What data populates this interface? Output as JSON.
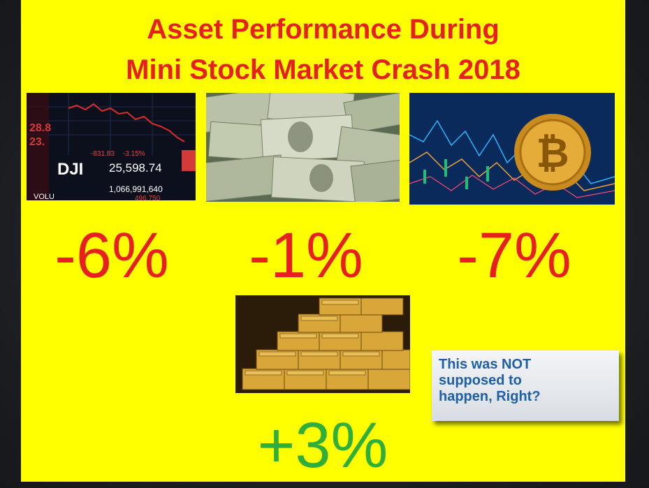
{
  "title_line1": "Asset Performance During",
  "title_line2": "Mini Stock Market Crash 2018",
  "assets": [
    {
      "name": "stocks-dji",
      "change": "-6%"
    },
    {
      "name": "cash",
      "change": "-1%"
    },
    {
      "name": "bitcoin",
      "change": "-7%"
    },
    {
      "name": "gold",
      "change": "+3%"
    }
  ],
  "dji_tile": {
    "ticker": "DJI",
    "change": "-831.83",
    "change_pct": "-3.15%",
    "value": "25,598.74",
    "volume_label": "VOLU",
    "volume": "1,066,991,640",
    "volume_sub": "496,750"
  },
  "callout": "This was NOT supposed to happen, Right?",
  "colors": {
    "slide_bg": "#ffff00",
    "loss": "#e8201d",
    "gain": "#2fae3a",
    "callout_text": "#1f5ea8"
  }
}
